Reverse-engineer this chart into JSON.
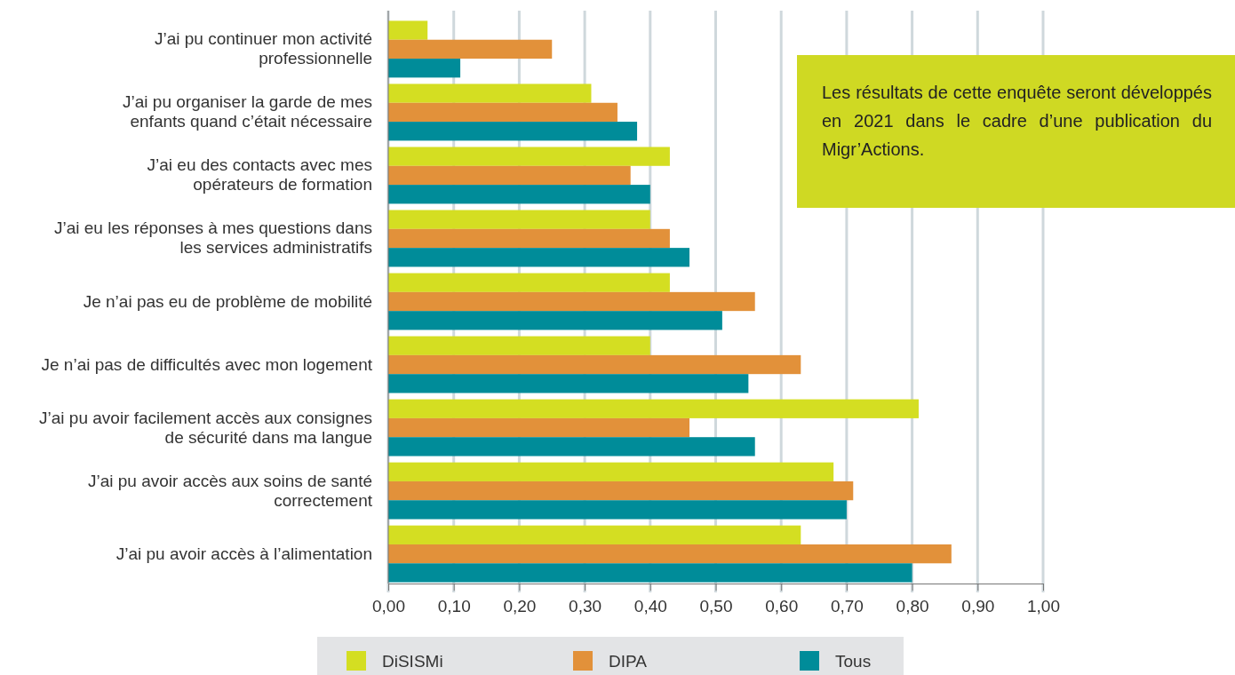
{
  "chart_data": {
    "type": "bar",
    "orientation": "horizontal",
    "categories": [
      "J’ai pu continuer mon activité\nprofessionnelle",
      "J’ai pu organiser la garde de mes\nenfants quand c’était nécessaire",
      "J’ai eu des contacts avec mes\nopérateurs de formation",
      "J’ai eu les réponses à mes questions dans\nles services administratifs",
      "Je n’ai pas eu de problème de mobilité",
      "Je n’ai pas de difficultés avec mon logement",
      "J’ai pu avoir facilement accès aux consignes\nde sécurité dans ma langue",
      "J’ai pu avoir accès aux soins de santé\ncorrectement",
      "J’ai pu avoir accès à l’alimentation"
    ],
    "series": [
      {
        "name": "DiSISMi",
        "color": "#d4de22",
        "values": [
          0.06,
          0.31,
          0.43,
          0.4,
          0.43,
          0.4,
          0.81,
          0.68,
          0.63
        ]
      },
      {
        "name": "DIPA",
        "color": "#e2913a",
        "values": [
          0.25,
          0.35,
          0.37,
          0.43,
          0.56,
          0.63,
          0.46,
          0.71,
          0.86
        ]
      },
      {
        "name": "Tous",
        "color": "#008c99",
        "values": [
          0.11,
          0.38,
          0.4,
          0.46,
          0.51,
          0.55,
          0.56,
          0.7,
          0.8
        ]
      }
    ],
    "xlim": [
      0,
      1
    ],
    "xticks": [
      {
        "value": 0,
        "label": "0,00"
      },
      {
        "value": 0.1,
        "label": "0,10"
      },
      {
        "value": 0.2,
        "label": "0,20"
      },
      {
        "value": 0.3,
        "label": "0,30"
      },
      {
        "value": 0.4,
        "label": "0,40"
      },
      {
        "value": 0.5,
        "label": "0,50"
      },
      {
        "value": 0.6,
        "label": "0,60"
      },
      {
        "value": 0.7,
        "label": "0,70"
      },
      {
        "value": 0.8,
        "label": "0,80"
      },
      {
        "value": 0.9,
        "label": "0,90"
      },
      {
        "value": 1,
        "label": "1,00"
      }
    ],
    "grid": "x",
    "legend": "bottom",
    "annotations": [
      "Les résultats de cette enquête seront développés en 2021 dans le cadre d’une publication du Migr’Actions."
    ]
  }
}
